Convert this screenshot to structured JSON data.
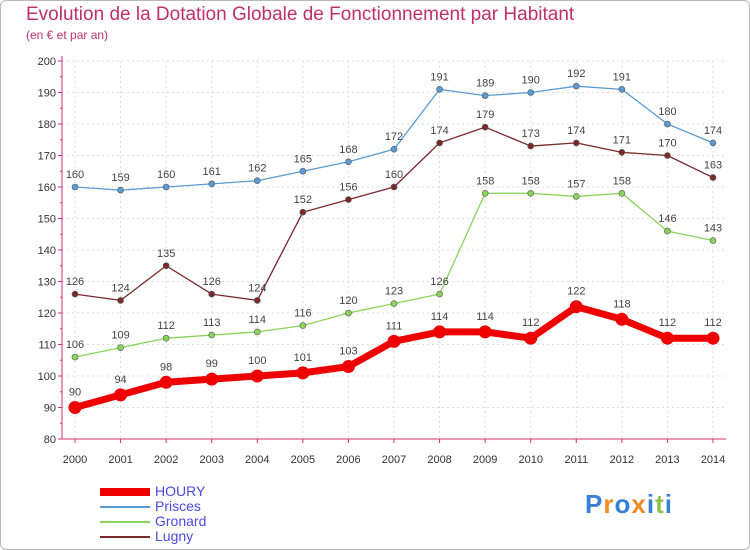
{
  "chart_data": {
    "type": "line",
    "title": "Evolution de la Dotation Globale de Fonctionnement par Habitant",
    "subtitle": "(en € et par an)",
    "xlabel": "",
    "ylabel": "",
    "x": [
      "2000",
      "2001",
      "2002",
      "2003",
      "2004",
      "2005",
      "2006",
      "2007",
      "2008",
      "2009",
      "2010",
      "2011",
      "2012",
      "2013",
      "2014"
    ],
    "ylim": [
      80,
      200
    ],
    "yticks": [
      80,
      90,
      100,
      110,
      120,
      130,
      140,
      150,
      160,
      170,
      180,
      190,
      200
    ],
    "grid": true,
    "legend_position": "bottom-left",
    "series": [
      {
        "name": "Prisces",
        "color": "#5a9bd5",
        "values": [
          160,
          159,
          160,
          161,
          162,
          165,
          168,
          172,
          191,
          189,
          190,
          192,
          191,
          180,
          174
        ]
      },
      {
        "name": "Lugny",
        "color": "#7a2a2a",
        "values": [
          126,
          124,
          135,
          126,
          124,
          152,
          156,
          160,
          174,
          179,
          173,
          174,
          171,
          170,
          163
        ]
      },
      {
        "name": "Gronard",
        "color": "#8bd45a",
        "values": [
          106,
          109,
          112,
          113,
          114,
          116,
          120,
          123,
          126,
          158,
          158,
          157,
          158,
          146,
          143
        ]
      },
      {
        "name": "HOURY",
        "color": "#ee0000",
        "values": [
          90,
          94,
          98,
          99,
          100,
          101,
          103,
          111,
          114,
          114,
          112,
          122,
          118,
          112,
          112
        ]
      }
    ],
    "legend_order": [
      "HOURY",
      "Prisces",
      "Gronard",
      "Lugny"
    ]
  },
  "logo": {
    "text": "Proxiti",
    "letters": [
      "P",
      "r",
      "o",
      "x",
      "i",
      "t",
      "i"
    ],
    "colors": [
      "#3a7fd5",
      "#f08a24",
      "#3a7fd5",
      "#f08a24",
      "#3a7fd5",
      "#8bc34a",
      "#3a7fd5"
    ]
  }
}
